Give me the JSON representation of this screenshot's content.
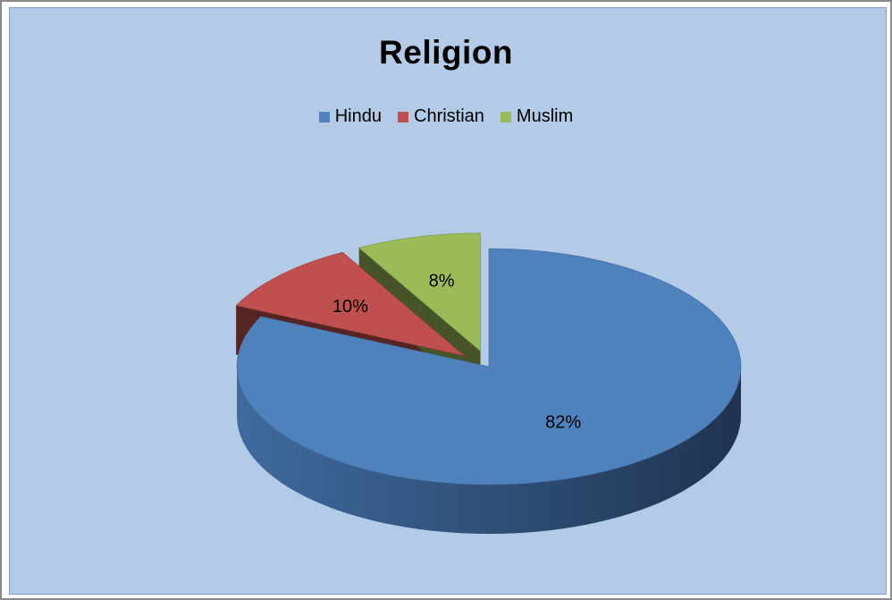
{
  "chart_data": {
    "type": "pie",
    "title": "Religion",
    "legend_position": "top",
    "exploded": true,
    "three_d": true,
    "slices": [
      {
        "name": "Hindu",
        "value": 82,
        "label": "82%",
        "color": "#4f81bd"
      },
      {
        "name": "Christian",
        "value": 10,
        "label": "10%",
        "color": "#c0504d"
      },
      {
        "name": "Muslim",
        "value": 8,
        "label": "8%",
        "color": "#9bbb59"
      }
    ]
  },
  "colors": {
    "background": "#b3cbe7"
  }
}
